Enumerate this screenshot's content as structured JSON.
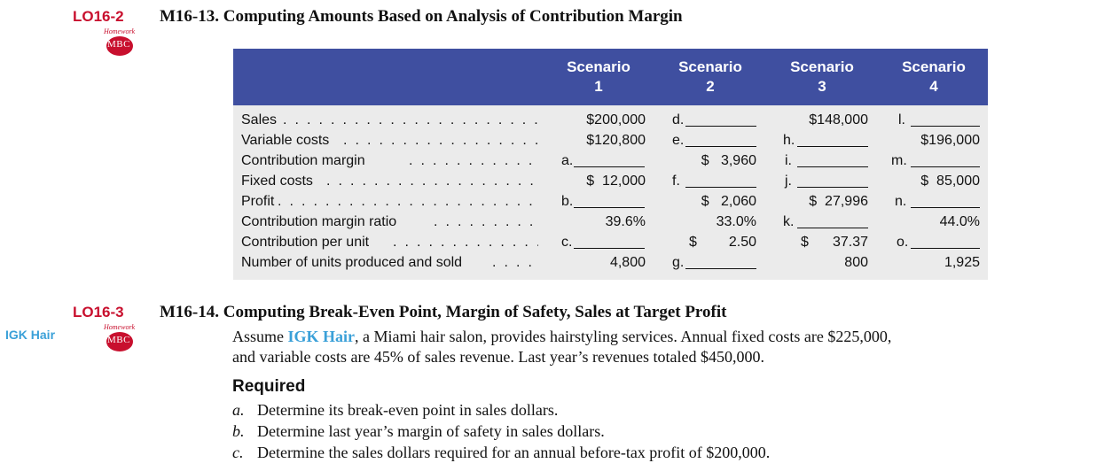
{
  "problem13": {
    "lo": "LO16-2",
    "title": "M16-13. Computing Amounts Based on Analysis of Contribution Margin",
    "badge": {
      "top": "Homework",
      "label": "MBC"
    }
  },
  "table": {
    "headers": [
      "Scenario\n1",
      "Scenario\n2",
      "Scenario\n3",
      "Scenario\n4"
    ],
    "rows": [
      {
        "label": "Sales",
        "s1": "$200,000",
        "s2": "d.",
        "s3": "$148,000",
        "s4": "l."
      },
      {
        "label": "Variable costs",
        "s1": "$120,800",
        "s2": "e.",
        "s3": "h.",
        "s4": "$196,000"
      },
      {
        "label": "Contribution margin",
        "s1": "a.",
        "s2": "$   3,960",
        "s3": "i.",
        "s4": "m."
      },
      {
        "label": "Fixed costs",
        "s1": "$  12,000",
        "s2": "f.",
        "s3": "j.",
        "s4": "$  85,000"
      },
      {
        "label": "Profit",
        "s1": "b.",
        "s2": "$   2,060",
        "s3": "$  27,996",
        "s4": "n."
      },
      {
        "label": "Contribution margin ratio",
        "s1": "39.6%",
        "s2": "33.0%",
        "s3": "k.",
        "s4": "44.0%"
      },
      {
        "label": "Contribution per unit",
        "s1": "c.",
        "s2_dollar": "$",
        "s2": "2.50",
        "s3_dollar": "$",
        "s3": "37.37",
        "s4": "o."
      },
      {
        "label": "Number of units produced and sold",
        "s1": "4,800",
        "s2": "g.",
        "s3": "800",
        "s4": "1,925"
      }
    ]
  },
  "problem14": {
    "lo": "LO16-3",
    "sidenote": "IGK Hair",
    "badge": {
      "top": "Homework",
      "label": "MBC"
    },
    "title": "M16-14. Computing Break-Even Point, Margin of Safety, Sales at Target Profit",
    "text_before": "Assume ",
    "brand": "IGK Hair",
    "text_after_line1": ", a Miami hair salon, provides hairstyling services. Annual fixed costs are $225,000,",
    "text_line2": "and variable costs are 45% of sales revenue. Last year’s revenues totaled $450,000.",
    "required": "Required",
    "items": [
      {
        "letter": "a.",
        "text": "Determine its break-even point in sales dollars."
      },
      {
        "letter": "b.",
        "text": "Determine last year’s margin of safety in sales dollars."
      },
      {
        "letter": "c.",
        "text": "Determine the sales dollars required for an annual before-tax profit of $200,000."
      }
    ]
  }
}
